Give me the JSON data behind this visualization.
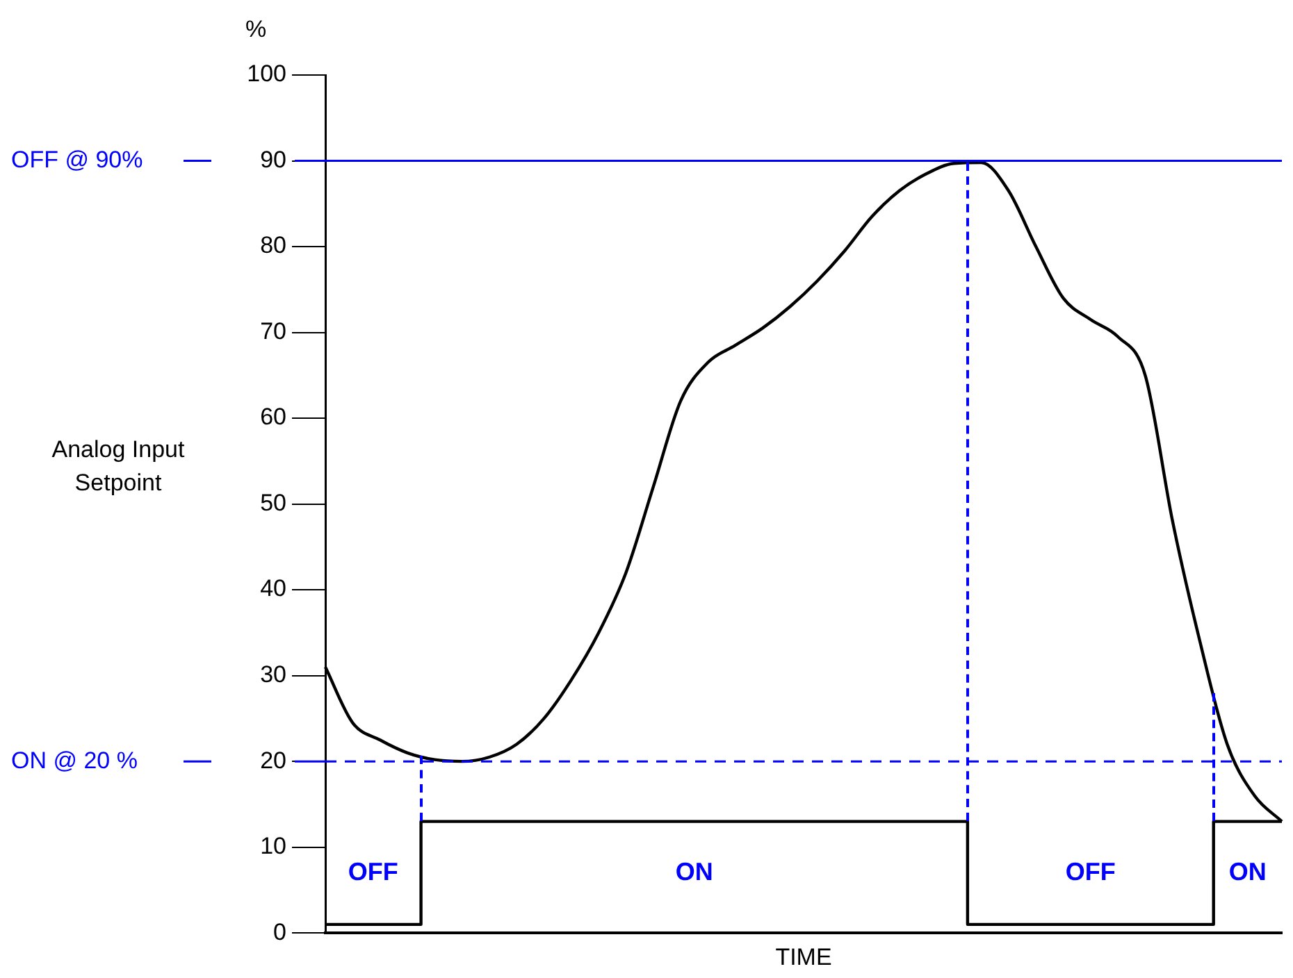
{
  "chart_data": {
    "type": "line",
    "xlabel": "TIME",
    "ylabel": "Analog Input Setpoint",
    "categories": [
      null,
      null,
      null,
      null,
      null,
      null,
      null,
      null,
      null,
      null,
      null,
      null,
      null,
      null,
      null,
      null,
      null,
      null,
      null,
      null,
      null,
      null,
      null,
      null,
      null,
      null,
      null,
      null,
      null,
      null,
      null,
      null,
      null,
      null,
      null,
      null
    ],
    "series": [
      {
        "color": "#000000",
        "values": [
          31,
          24.5,
          22.5,
          21,
          20.2,
          20,
          20.5,
          22,
          25,
          29.5,
          35,
          42,
          52,
          62,
          66.5,
          68.5,
          70.5,
          73,
          76,
          79.5,
          83.5,
          86.5,
          88.5,
          89.7,
          89.8,
          86.5,
          80,
          74,
          71.5,
          69.5,
          65,
          48,
          34,
          22,
          16,
          13
        ]
      },
      {
        "type": "step",
        "color": "#000000",
        "values": [
          1,
          1,
          1,
          1,
          13,
          13,
          13,
          13,
          13,
          13,
          13,
          13,
          13,
          13,
          13,
          13,
          13,
          13,
          13,
          13,
          13,
          13,
          13,
          13,
          1,
          1,
          1,
          1,
          1,
          1,
          1,
          1,
          1,
          13,
          13,
          13
        ]
      }
    ],
    "ylim": [
      0,
      100
    ],
    "yticks": [
      0,
      10,
      20,
      30,
      40,
      50,
      60,
      70,
      80,
      90,
      100
    ],
    "tick_labels": "y",
    "grid": false,
    "marker": "none",
    "ref_lines": [
      {
        "axis": "y",
        "value": 90,
        "label": "OFF @ 90%",
        "color": "#0000ff"
      },
      {
        "axis": "y",
        "value": 20,
        "label": "ON @ 20 %",
        "color": "#0000ff",
        "line_style": "dashed"
      }
    ],
    "annotations": [
      "%",
      "OFF",
      "ON",
      "OFF",
      "ON"
    ]
  }
}
